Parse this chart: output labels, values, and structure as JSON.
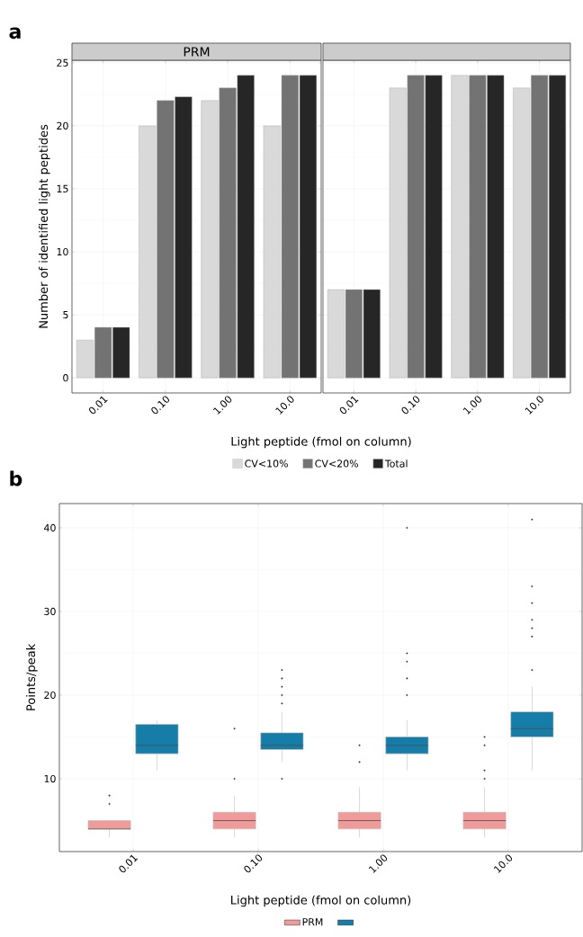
{
  "chart_data": [
    {
      "type": "bar",
      "title": "PRM",
      "annotations": [
        "a"
      ],
      "xlabel": "Light peptide (fmol on column)",
      "ylabel": "Number of identified light peptides",
      "categories": [
        "0.01",
        "0.10",
        "1.00",
        "10.0"
      ],
      "series": [
        {
          "name": "CV<10%",
          "color": "#d9d9d9",
          "values": [
            3,
            20,
            22,
            20
          ]
        },
        {
          "name": "CV<20%",
          "color": "#737373",
          "values": [
            4,
            22,
            23,
            24
          ]
        },
        {
          "name": "Total",
          "color": "#262626",
          "values": [
            4,
            22.3,
            24,
            24
          ]
        }
      ],
      "ylim": [
        -1.2,
        25.2
      ],
      "yticks": [
        0,
        5,
        10,
        15,
        20,
        25
      ],
      "grid": true,
      "legend": "bottom"
    },
    {
      "type": "bar",
      "categories": [
        "0.01",
        "0.10",
        "1.00",
        "10.0"
      ],
      "series": [
        {
          "color": "#d9d9d9",
          "values": [
            7,
            23,
            24,
            23
          ]
        },
        {
          "color": "#737373",
          "values": [
            7,
            24,
            24,
            24
          ]
        },
        {
          "color": "#262626",
          "values": [
            7,
            24,
            24,
            24
          ]
        }
      ],
      "ylim": [
        -1.2,
        25.2
      ],
      "yticks": [
        0,
        5,
        10,
        15,
        20,
        25
      ],
      "grid": true,
      "tick_labels": "x"
    },
    {
      "type": "box",
      "annotations": [
        "b"
      ],
      "xlabel": "Light peptide (fmol on column)",
      "ylabel": "Points/peak",
      "categories": [
        "0.01",
        "0.10",
        "1.00",
        "10.0"
      ],
      "series": [
        {
          "name": "PRM",
          "color": "#f09b9a",
          "boxes": [
            {
              "low": 3,
              "q1": 4,
              "median": 4,
              "q3": 5,
              "high": 5,
              "outliers": [
                7,
                8
              ]
            },
            {
              "low": 3,
              "q1": 4,
              "median": 5,
              "q3": 6,
              "high": 8,
              "outliers": [
                10,
                16
              ]
            },
            {
              "low": 3,
              "q1": 4,
              "median": 5,
              "q3": 6,
              "high": 9,
              "outliers": [
                12,
                14
              ]
            },
            {
              "low": 3,
              "q1": 4,
              "median": 5,
              "q3": 6,
              "high": 9,
              "outliers": [
                10,
                11,
                14,
                15
              ]
            }
          ]
        },
        {
          "color": "#167ca8",
          "boxes": [
            {
              "low": 11,
              "q1": 13,
              "median": 14,
              "q3": 16.5,
              "high": 17
            },
            {
              "low": 12,
              "q1": 13.5,
              "median": 14,
              "q3": 15.5,
              "high": 18,
              "outliers": [
                10,
                19,
                20,
                21,
                22,
                23
              ]
            },
            {
              "low": 11,
              "q1": 13,
              "median": 14,
              "q3": 15,
              "high": 17,
              "outliers": [
                20,
                22,
                24,
                25,
                40
              ]
            },
            {
              "low": 11,
              "q1": 15,
              "median": 16,
              "q3": 18,
              "high": 21,
              "outliers": [
                23,
                27,
                28,
                29,
                31,
                33,
                41
              ]
            }
          ]
        }
      ],
      "ylim": [
        1.3,
        42.9
      ],
      "yticks": [
        10,
        20,
        30,
        40
      ],
      "grid": true,
      "legend": "bottom"
    }
  ]
}
